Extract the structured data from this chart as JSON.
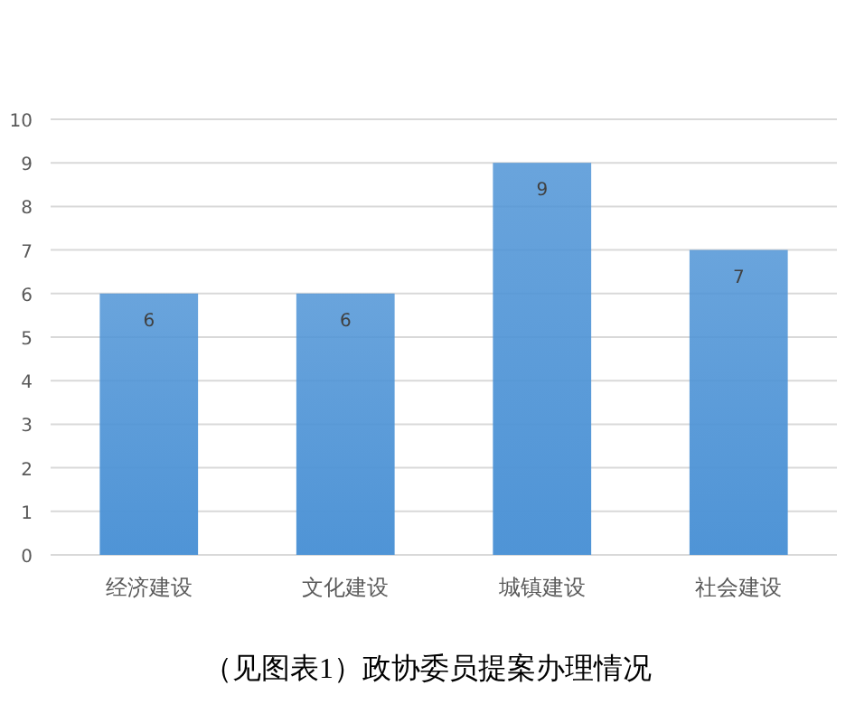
{
  "chart_data": {
    "type": "bar",
    "categories": [
      "经济建设",
      "文化建设",
      "城镇建设",
      "社会建设"
    ],
    "values": [
      6,
      6,
      9,
      7
    ],
    "color": "#4f94d6",
    "ylim": [
      0,
      10
    ],
    "yticks": [
      0,
      1,
      2,
      3,
      4,
      5,
      6,
      7,
      8,
      9,
      10
    ],
    "grid": "y",
    "data_labels": true,
    "annotations": [
      "（见图表1）政协委员提案办理情况"
    ]
  }
}
